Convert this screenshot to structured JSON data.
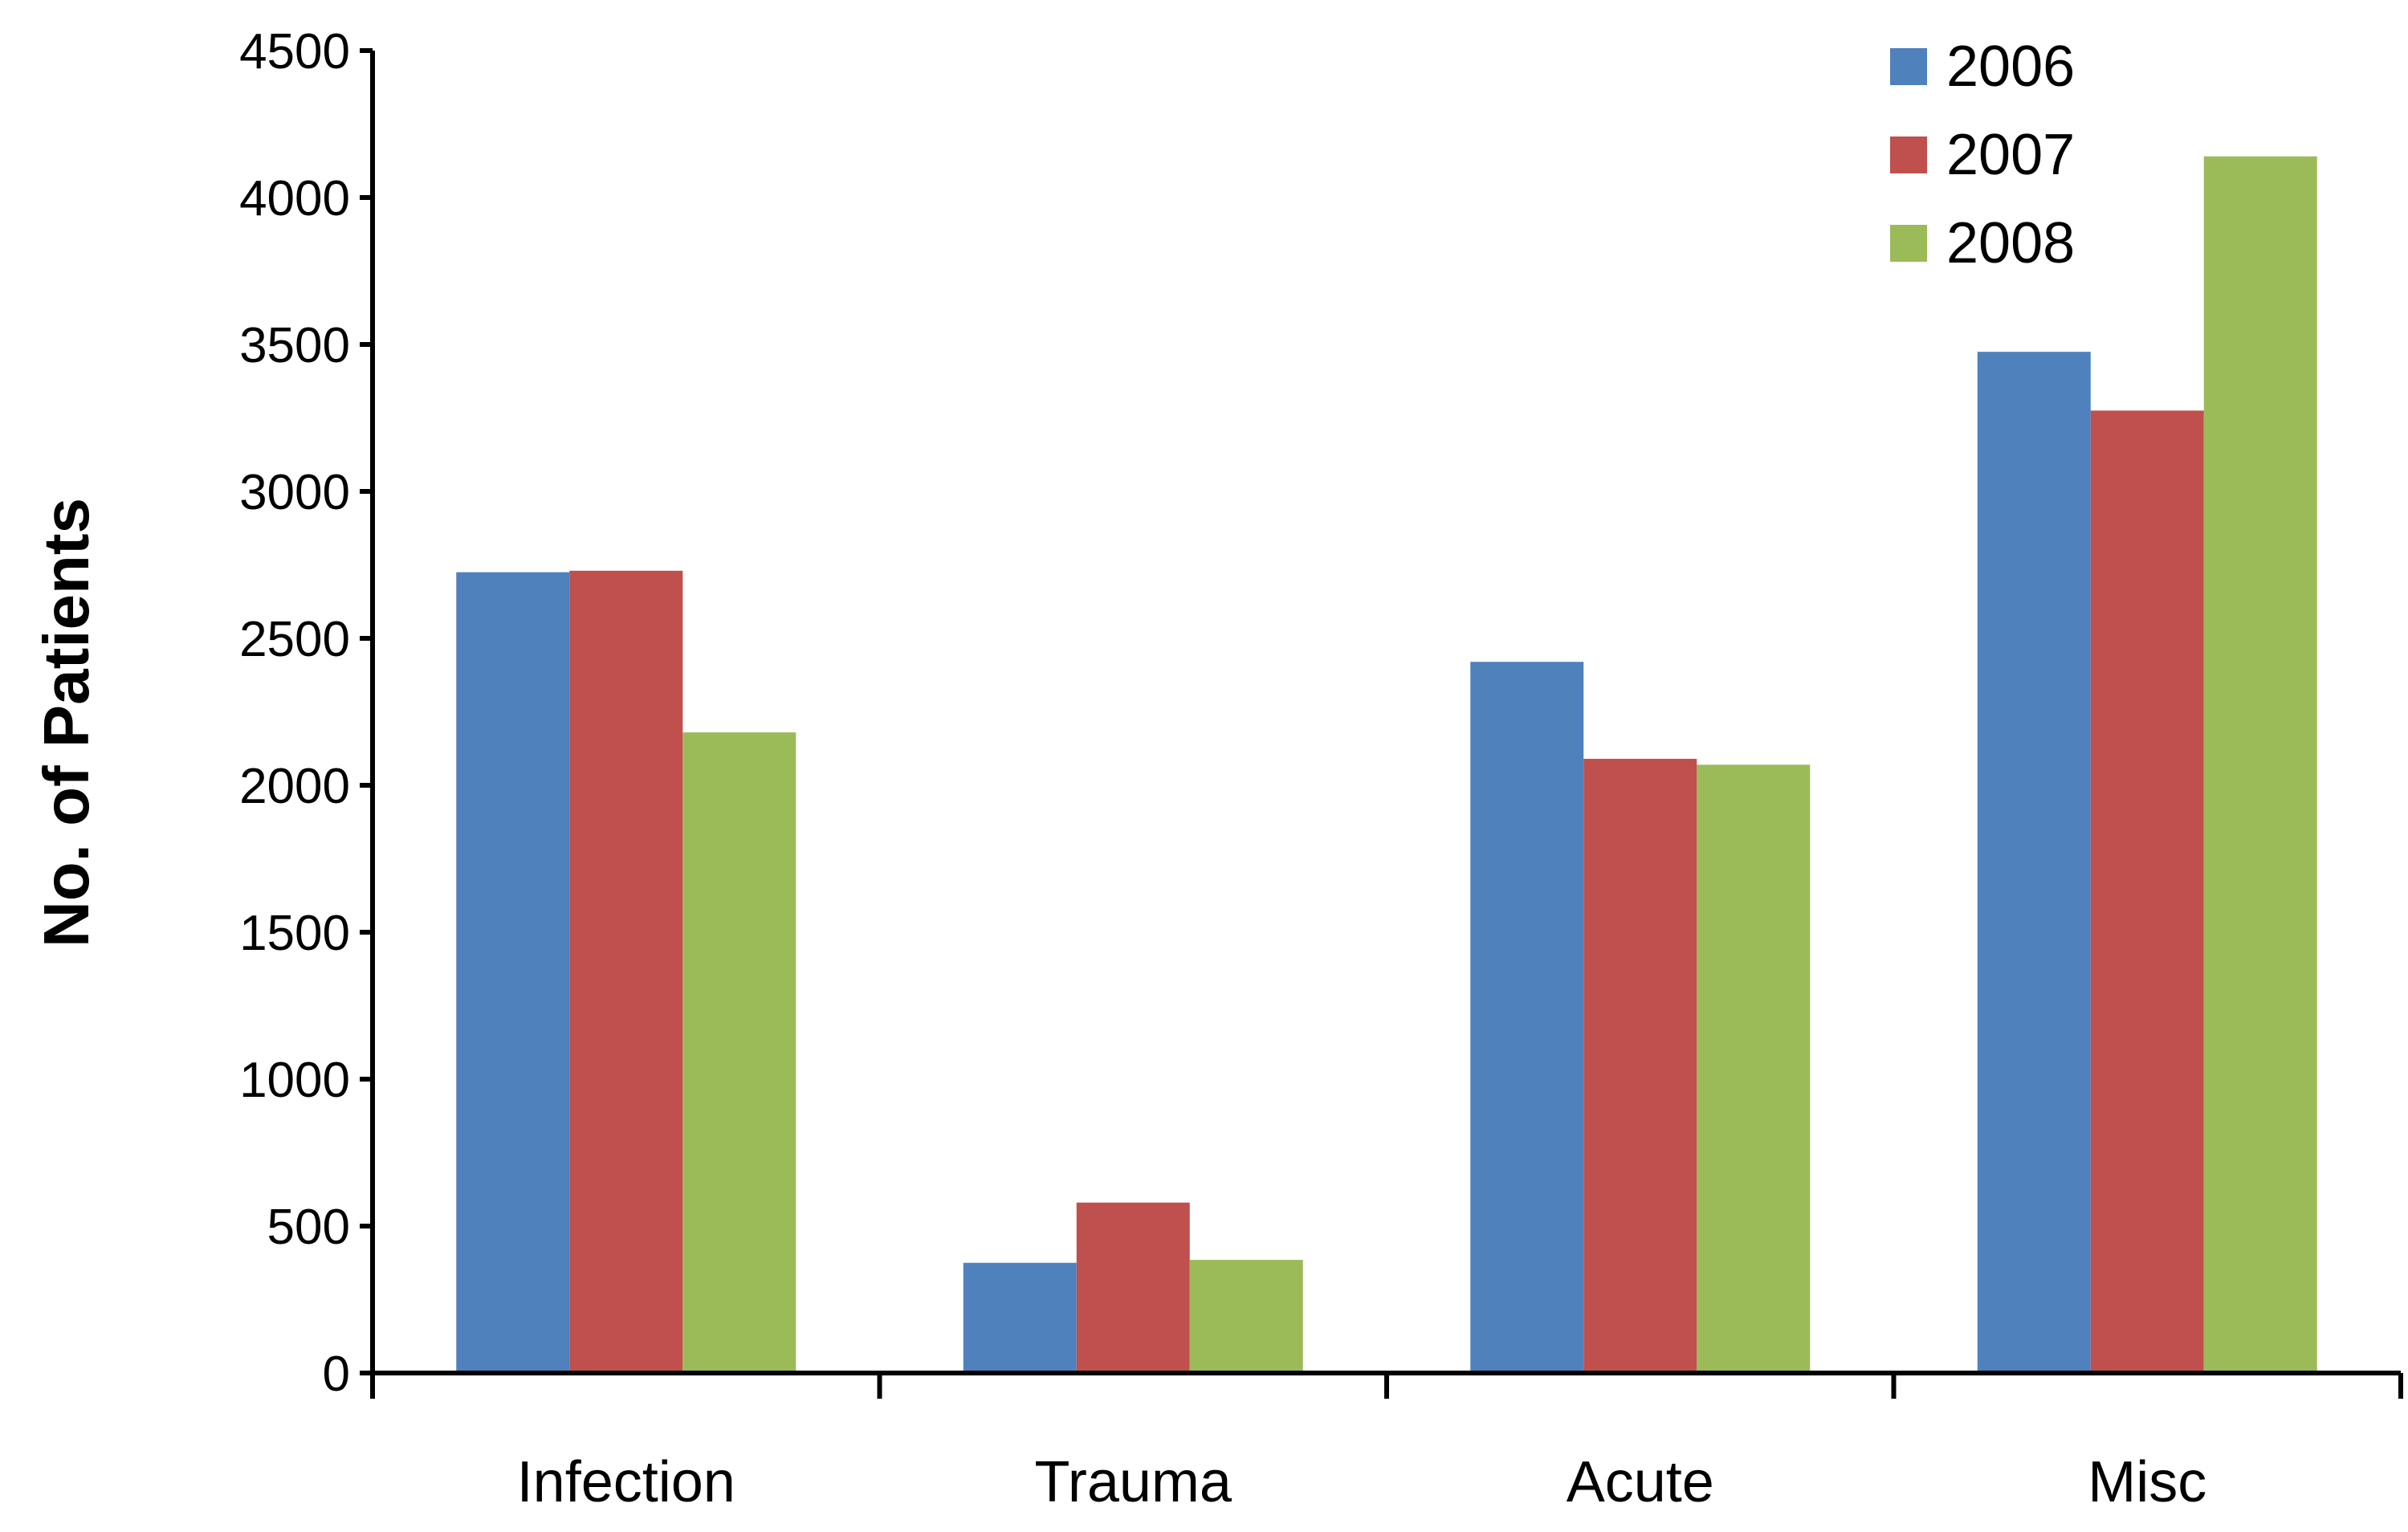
{
  "chart_data": {
    "type": "bar",
    "title": "",
    "xlabel": "",
    "ylabel": "No. of Patients",
    "categories": [
      "Infection",
      "Trauma",
      "Acute",
      "Misc"
    ],
    "series": [
      {
        "name": "2006",
        "color": "#4F81BD",
        "values": [
          2725,
          375,
          2420,
          3475
        ]
      },
      {
        "name": "2007",
        "color": "#C0504D",
        "values": [
          2730,
          580,
          2090,
          3275
        ]
      },
      {
        "name": "2008",
        "color": "#9BBB59",
        "values": [
          2180,
          385,
          2070,
          4140
        ]
      }
    ],
    "ylim": [
      0,
      4500
    ],
    "yticks": [
      0,
      500,
      1000,
      1500,
      2000,
      2500,
      3000,
      3500,
      4000,
      4500
    ],
    "grid": false,
    "legend": "top-right"
  }
}
